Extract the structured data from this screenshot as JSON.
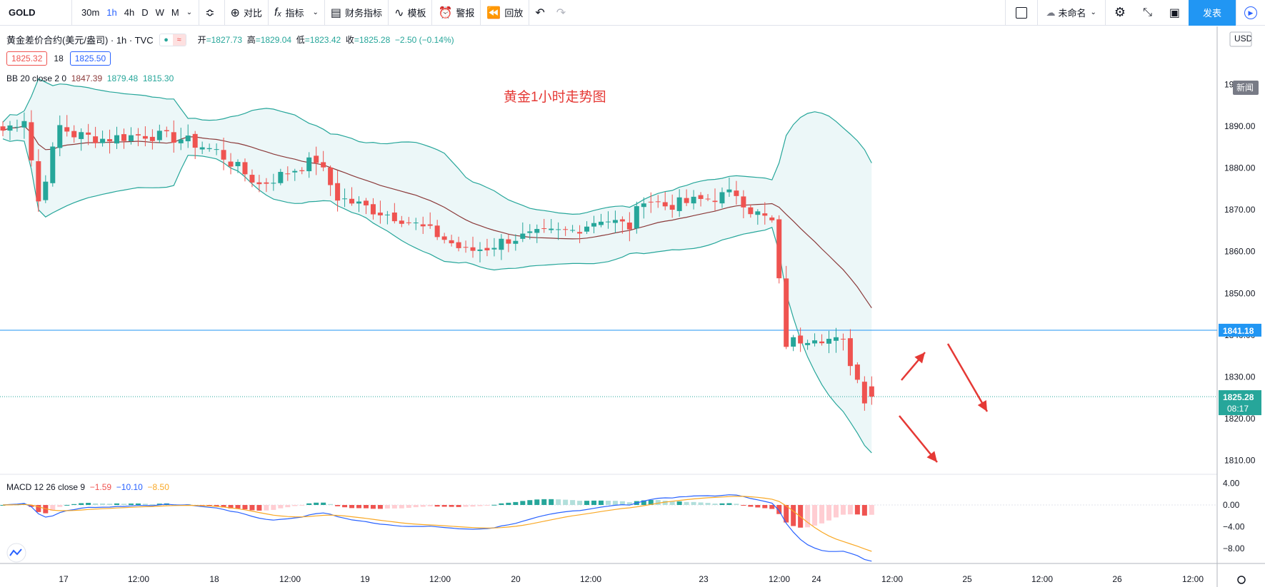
{
  "toolbar": {
    "symbol": "GOLD",
    "intervals": [
      "30m",
      "1h",
      "4h",
      "D",
      "W",
      "M"
    ],
    "active_interval": "1h",
    "compare": "对比",
    "indicators": "指标",
    "financials": "财务指标",
    "templates": "模板",
    "alert": "警报",
    "replay": "回放",
    "layout_name": "未命名",
    "publish": "发表"
  },
  "legend": {
    "name": "黄金差价合约(美元/盎司) · 1h · TVC",
    "open_label": "开",
    "open": "=1827.73",
    "high_label": "高",
    "high": "=1829.04",
    "low_label": "低",
    "low": "=1823.42",
    "close_label": "收",
    "close": "=1825.28",
    "change": "−2.50 (−0.14%)",
    "bid": "1825.32",
    "spread": "18",
    "ask": "1825.50"
  },
  "bb_legend": {
    "label": "BB 20 close 2 0",
    "basis": "1847.39",
    "upper": "1879.48",
    "lower": "1815.30"
  },
  "macd_legend": {
    "label": "MACD 12 26 close 9",
    "hist": "−1.59",
    "macd": "−10.10",
    "signal": "−8.50"
  },
  "annotation": "黄金1小时走势图",
  "price_axis": {
    "currency": "USD",
    "ticks": [
      "1900.00",
      "1890.00",
      "1880.00",
      "1870.00",
      "1860.00",
      "1850.00",
      "1840.00",
      "1830.00",
      "1820.00",
      "1810.00"
    ],
    "line_label": "1841.18",
    "last_label": "1825.28",
    "countdown": "08:17",
    "news_badge": "新闻"
  },
  "macd_axis": {
    "ticks": [
      "4.00",
      "0.00",
      "−4.00",
      "−8.00"
    ]
  },
  "time_axis": {
    "ticks": [
      "17",
      "12:00",
      "18",
      "12:00",
      "19",
      "12:00",
      "20",
      "12:00",
      "23",
      "12:00",
      "24",
      "12:00",
      "25",
      "12:00",
      "26",
      "12:00"
    ]
  },
  "colors": {
    "up": "#26a69a",
    "down": "#ef5350",
    "accent": "#2196f3",
    "bb_fill": "#e6f4f6",
    "basis": "#8b3a3a",
    "macd": "#2962ff",
    "signal": "#f9a825"
  },
  "chart_data": {
    "type": "candlestick",
    "symbol": "GOLD",
    "interval": "1h",
    "ylim": [
      1805,
      1912
    ],
    "candle_close_path": [
      [
        0,
        1889
      ],
      [
        3,
        1892
      ],
      [
        5,
        1872
      ],
      [
        8,
        1890
      ],
      [
        10,
        1888
      ],
      [
        14,
        1887
      ],
      [
        20,
        1888
      ],
      [
        25,
        1887
      ],
      [
        30,
        1884
      ],
      [
        33,
        1880
      ],
      [
        36,
        1876
      ],
      [
        40,
        1879
      ],
      [
        44,
        1882
      ],
      [
        47,
        1873
      ],
      [
        52,
        1870
      ],
      [
        56,
        1868
      ],
      [
        61,
        1864
      ],
      [
        65,
        1860
      ],
      [
        68,
        1861
      ],
      [
        71,
        1863
      ],
      [
        75,
        1864
      ],
      [
        80,
        1865
      ],
      [
        84,
        1868
      ],
      [
        88,
        1866
      ],
      [
        90,
        1873
      ],
      [
        93,
        1871
      ],
      [
        97,
        1872
      ],
      [
        100,
        1873
      ],
      [
        103,
        1874
      ],
      [
        105,
        1870
      ],
      [
        108,
        1867
      ],
      [
        110,
        1838
      ],
      [
        114,
        1840
      ],
      [
        118,
        1838
      ],
      [
        121,
        1825
      ]
    ],
    "annotations": [
      "黄金1小时走势图"
    ],
    "horizontal_line": 1841.18,
    "last_price": 1825.28,
    "macd": {
      "macd_last": -10.1,
      "signal_last": -8.5,
      "hist_last": -1.59,
      "ylim": [
        -10,
        5
      ]
    }
  }
}
